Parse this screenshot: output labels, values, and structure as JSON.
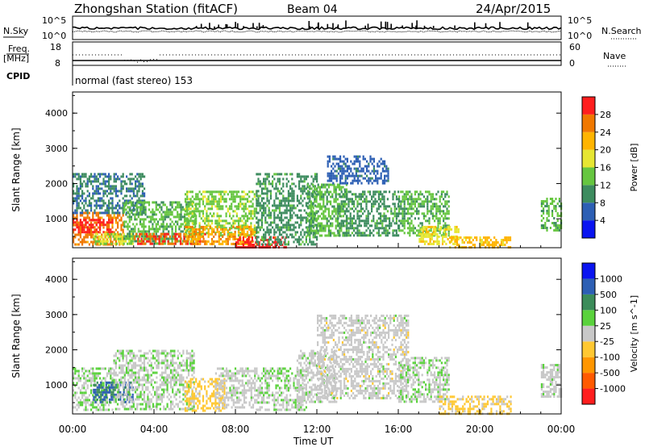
{
  "header": {
    "station": "Zhongshan Station (fitACF)",
    "beam": "Beam 04",
    "date": "24/Apr/2015"
  },
  "top_panels": {
    "nsky_label": "N.Sky",
    "nsearch_label": "N.Search",
    "nsky_ticks": [
      "10^5",
      "10^0"
    ],
    "freq_label": "Freq.",
    "freq_unit": "[MHz]",
    "freq_ticks": [
      "18",
      "8"
    ],
    "nave_label": "Nave",
    "nave_ticks": [
      "60",
      "0"
    ],
    "cpid_label": "CPID",
    "cpid_text": "normal (fast stereo) 153"
  },
  "colors": {
    "power_scale": [
      "#0a14f0",
      "#2d5fb4",
      "#3d8c5f",
      "#66c640",
      "#e6e632",
      "#ffb400",
      "#f07800",
      "#ff1e1e"
    ],
    "velocity_scale": [
      "#ff1e1e",
      "#ff5a00",
      "#ff9600",
      "#ffc832",
      "#c8c8c8",
      "#5ad23c",
      "#3c8c5a",
      "#2d5fb4",
      "#0a14f0"
    ]
  },
  "chart_data": [
    {
      "type": "heatmap",
      "panel": "power",
      "xlabel": "Time UT",
      "ylabel": "Slant Range [km]",
      "xlim": [
        0,
        24
      ],
      "ylim": [
        180,
        4600
      ],
      "x_ticks": [
        "00:00",
        "04:00",
        "08:00",
        "12:00",
        "16:00",
        "20:00",
        "00:00"
      ],
      "y_ticks": [
        "1000",
        "2000",
        "3000",
        "4000"
      ],
      "colorbar": {
        "label": "Power [dB]",
        "ticks": [
          "4",
          "8",
          "12",
          "16",
          "20",
          "24",
          "28"
        ],
        "range": [
          0,
          30
        ]
      },
      "regions": [
        {
          "t": [
            0.0,
            2.5
          ],
          "r": [
            300,
            1200
          ],
          "v": 24
        },
        {
          "t": [
            0.0,
            2.0
          ],
          "r": [
            600,
            1000
          ],
          "v": 28
        },
        {
          "t": [
            0.0,
            3.5
          ],
          "r": [
            1200,
            2300
          ],
          "v": 8
        },
        {
          "t": [
            1.0,
            3.0
          ],
          "r": [
            300,
            600
          ],
          "v": 16
        },
        {
          "t": [
            2.5,
            6.0
          ],
          "r": [
            300,
            1500
          ],
          "v": 12
        },
        {
          "t": [
            3.0,
            6.5
          ],
          "r": [
            300,
            600
          ],
          "v": 26
        },
        {
          "t": [
            5.5,
            9.0
          ],
          "r": [
            500,
            1800
          ],
          "v": 14
        },
        {
          "t": [
            5.5,
            9.0
          ],
          "r": [
            300,
            800
          ],
          "v": 22
        },
        {
          "t": [
            8.0,
            10.5
          ],
          "r": [
            200,
            500
          ],
          "v": 28
        },
        {
          "t": [
            9.0,
            12.0
          ],
          "r": [
            300,
            2300
          ],
          "v": 10
        },
        {
          "t": [
            11.5,
            13.5
          ],
          "r": [
            500,
            2000
          ],
          "v": 12
        },
        {
          "t": [
            12.5,
            15.5
          ],
          "r": [
            2000,
            2800
          ],
          "v": 6
        },
        {
          "t": [
            13.0,
            16.0
          ],
          "r": [
            500,
            1800
          ],
          "v": 10
        },
        {
          "t": [
            16.0,
            18.5
          ],
          "r": [
            500,
            1800
          ],
          "v": 12
        },
        {
          "t": [
            17.0,
            19.0
          ],
          "r": [
            300,
            800
          ],
          "v": 18
        },
        {
          "t": [
            18.5,
            21.5
          ],
          "r": [
            200,
            500
          ],
          "v": 20
        },
        {
          "t": [
            23.0,
            24.0
          ],
          "r": [
            700,
            1600
          ],
          "v": 12
        }
      ]
    },
    {
      "type": "heatmap",
      "panel": "velocity",
      "xlabel": "Time UT",
      "ylabel": "Slant Range [km]",
      "xlim": [
        0,
        24
      ],
      "ylim": [
        180,
        4600
      ],
      "x_ticks": [
        "00:00",
        "04:00",
        "08:00",
        "12:00",
        "16:00",
        "20:00",
        "00:00"
      ],
      "y_ticks": [
        "1000",
        "2000",
        "3000",
        "4000"
      ],
      "colorbar": {
        "label": "Velocity [m s^-1]",
        "ticks": [
          "1000",
          "500",
          "100",
          "25",
          "-25",
          "-100",
          "-500",
          "-1000"
        ],
        "range": [
          -1000,
          1000
        ]
      },
      "regions": [
        {
          "t": [
            0.0,
            2.0
          ],
          "r": [
            300,
            1500
          ],
          "v": 100
        },
        {
          "t": [
            1.0,
            3.0
          ],
          "r": [
            500,
            1100
          ],
          "v": 600
        },
        {
          "t": [
            2.0,
            6.0
          ],
          "r": [
            300,
            2000
          ],
          "v": 60
        },
        {
          "t": [
            5.5,
            7.5
          ],
          "r": [
            300,
            1200
          ],
          "v": -200
        },
        {
          "t": [
            7.0,
            9.0
          ],
          "r": [
            400,
            1500
          ],
          "v": 20
        },
        {
          "t": [
            9.0,
            11.5
          ],
          "r": [
            300,
            1500
          ],
          "v": 80
        },
        {
          "t": [
            11.0,
            13.0
          ],
          "r": [
            500,
            2000
          ],
          "v": 10
        },
        {
          "t": [
            12.0,
            16.5
          ],
          "r": [
            600,
            3000
          ],
          "v": 0
        },
        {
          "t": [
            16.0,
            18.5
          ],
          "r": [
            500,
            1800
          ],
          "v": 60
        },
        {
          "t": [
            18.0,
            21.5
          ],
          "r": [
            200,
            700
          ],
          "v": -150
        },
        {
          "t": [
            23.0,
            24.0
          ],
          "r": [
            700,
            1600
          ],
          "v": 20
        }
      ]
    }
  ]
}
